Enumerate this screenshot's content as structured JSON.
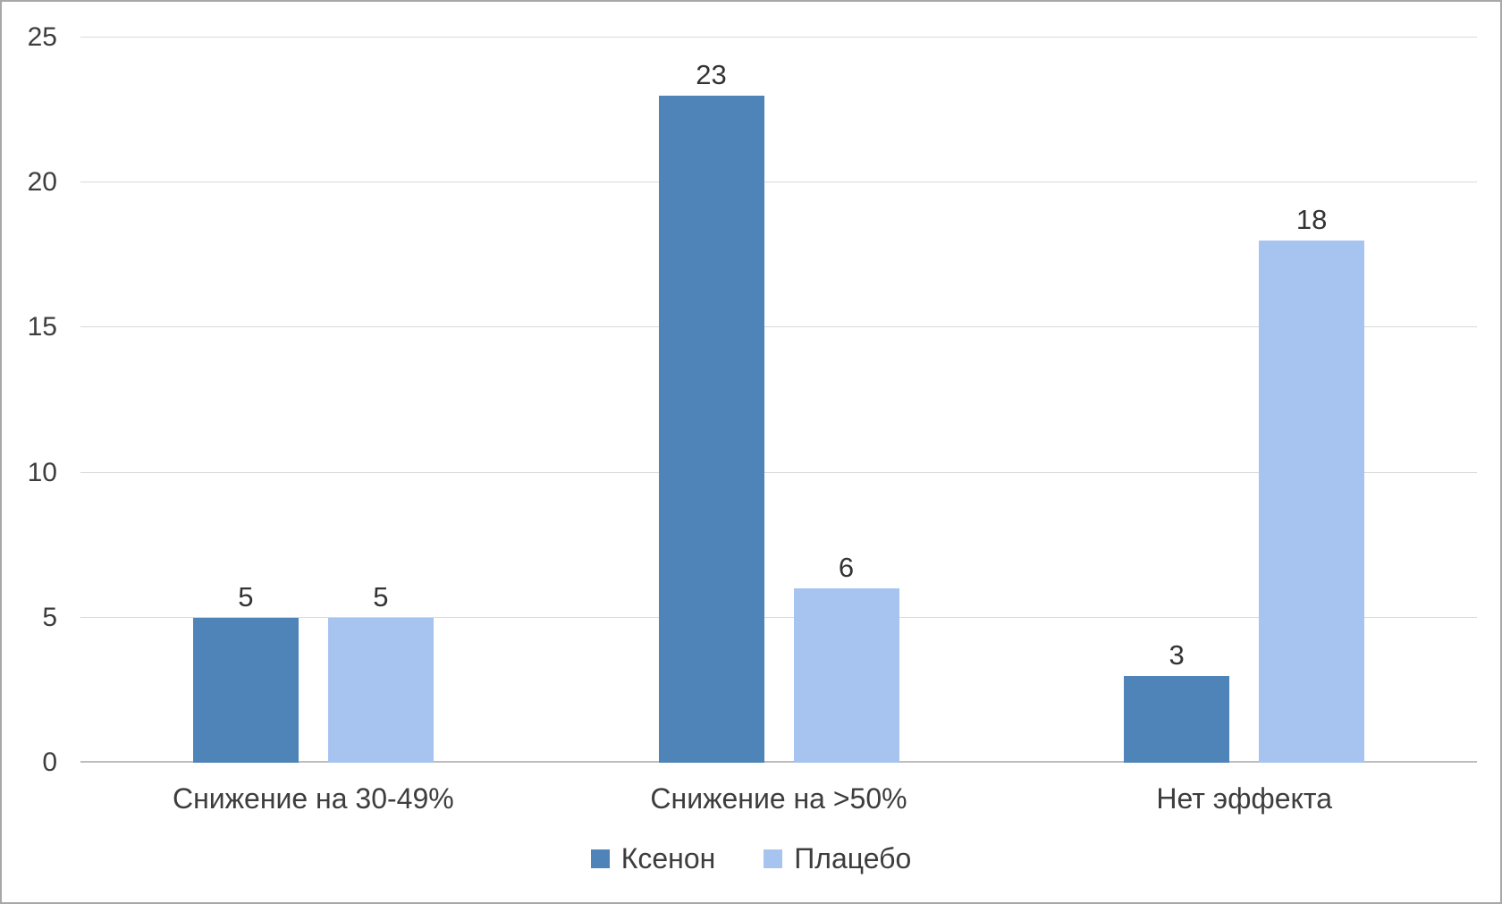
{
  "chart_data": {
    "type": "bar",
    "categories": [
      "Снижение на 30-49%",
      "Снижение на >50%",
      "Нет эффекта"
    ],
    "series": [
      {
        "name": "Ксенон",
        "color": "#4e84b8",
        "values": [
          5,
          23,
          3
        ]
      },
      {
        "name": "Плацебо",
        "color": "#a6c4ef",
        "values": [
          5,
          6,
          18
        ]
      }
    ],
    "title": "",
    "xlabel": "",
    "ylabel": "",
    "ylim": [
      0,
      25
    ],
    "yticks": [
      0,
      5,
      10,
      15,
      20,
      25
    ],
    "grid": true,
    "legend_position": "bottom"
  },
  "colors": {
    "grid": "#d9d9d9",
    "baseline": "#bdbdbd",
    "text": "#3d3d3d",
    "background": "#ffffff",
    "frame_border": "#a8a8a8"
  }
}
